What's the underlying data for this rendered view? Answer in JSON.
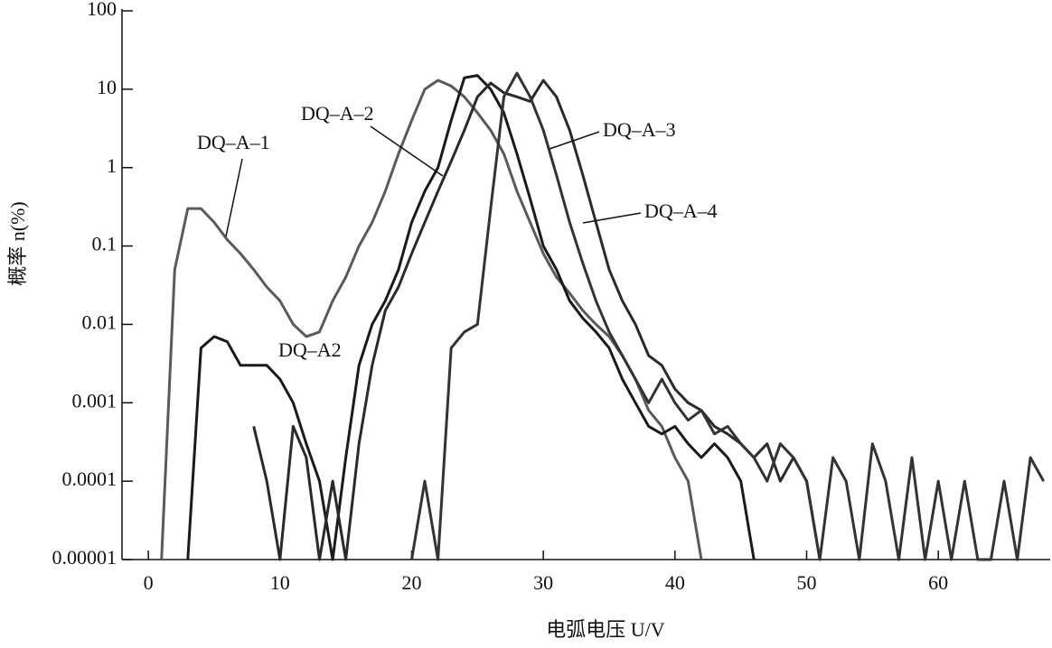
{
  "chart_data": {
    "type": "line",
    "x_label": "电弧电压 U/V",
    "y_label": "概率 n(%)",
    "log_y": true,
    "grid": false,
    "xlim": [
      -2,
      68.5
    ],
    "ylim": [
      1e-05,
      100
    ],
    "xticks": [
      0,
      10,
      20,
      30,
      40,
      50,
      60
    ],
    "yticks": [
      100,
      10,
      1,
      0.1,
      0.01,
      0.001,
      0.0001,
      {
        "value": 1e-05,
        "label": "0.00001"
      }
    ],
    "x": [
      0,
      1,
      2,
      3,
      4,
      5,
      6,
      7,
      8,
      9,
      10,
      11,
      12,
      13,
      14,
      15,
      16,
      17,
      18,
      19,
      20,
      21,
      22,
      23,
      24,
      25,
      26,
      27,
      28,
      29,
      30,
      31,
      32,
      33,
      34,
      35,
      36,
      37,
      38,
      39,
      40,
      41,
      42,
      43,
      44,
      45,
      46,
      47,
      48,
      49,
      50,
      51,
      52,
      53,
      54,
      55,
      56,
      57,
      58,
      59,
      60,
      61,
      62,
      63,
      64,
      65,
      66,
      67,
      68
    ],
    "series": [
      {
        "name": "DQ–A–1",
        "color": "#5a5a5a",
        "values": [
          null,
          1e-05,
          0.05,
          0.3,
          0.3,
          0.2,
          0.12,
          0.08,
          0.05,
          0.03,
          0.02,
          0.01,
          0.007,
          0.008,
          0.02,
          0.04,
          0.1,
          0.2,
          0.5,
          1.5,
          4,
          10,
          13,
          11,
          8,
          5,
          3,
          1.5,
          0.5,
          0.2,
          0.08,
          0.04,
          0.025,
          0.015,
          0.01,
          0.007,
          0.004,
          0.002,
          0.0008,
          0.0005,
          0.0002,
          0.0001,
          1e-05,
          null,
          null,
          null,
          null,
          null,
          null,
          null,
          null,
          null,
          null,
          null,
          null,
          null,
          null,
          null,
          null,
          null,
          null,
          null,
          null,
          null,
          null,
          null,
          null,
          null,
          null
        ]
      },
      {
        "name": "DQ–A–2",
        "color": "#1a1a1a",
        "values": [
          null,
          null,
          null,
          1e-05,
          0.005,
          0.007,
          0.006,
          0.003,
          0.003,
          0.003,
          0.002,
          0.001,
          0.0003,
          0.0001,
          1e-05,
          0.0002,
          0.003,
          0.01,
          0.02,
          0.05,
          0.2,
          0.5,
          1,
          4,
          14,
          15,
          10,
          5,
          1.5,
          0.4,
          0.1,
          0.05,
          0.02,
          0.012,
          0.008,
          0.005,
          0.002,
          0.001,
          0.0005,
          0.0004,
          0.0005,
          0.0003,
          0.0002,
          0.0003,
          0.0002,
          0.0001,
          1e-05,
          null,
          null,
          null,
          null,
          null,
          null,
          null,
          null,
          null,
          null,
          null,
          null,
          null,
          null,
          null,
          null,
          null,
          null,
          null,
          null,
          null,
          null
        ]
      },
      {
        "name": "DQ–A–3",
        "color": "#2a2a2a",
        "values": [
          null,
          null,
          null,
          null,
          null,
          null,
          null,
          null,
          0.0005,
          0.0001,
          1e-05,
          0.0005,
          0.0002,
          1e-05,
          0.0001,
          1e-05,
          0.0003,
          0.003,
          0.015,
          0.03,
          0.08,
          0.2,
          0.5,
          1.2,
          3,
          8,
          12,
          9,
          8,
          7,
          13,
          8,
          3,
          0.8,
          0.2,
          0.05,
          0.02,
          0.01,
          0.004,
          0.003,
          0.0015,
          0.001,
          0.0008,
          0.0005,
          0.0004,
          0.0003,
          0.0002,
          0.0003,
          0.0001,
          0.0002,
          0.0001,
          1e-05,
          null,
          null,
          null,
          null,
          null,
          null,
          null,
          null,
          null,
          null,
          null,
          null,
          null,
          null,
          null,
          null,
          null
        ]
      },
      {
        "name": "DQ–A–4",
        "color": "#333333",
        "values": [
          null,
          null,
          null,
          null,
          null,
          null,
          null,
          null,
          null,
          null,
          null,
          null,
          null,
          null,
          null,
          null,
          null,
          null,
          null,
          null,
          1e-05,
          0.0001,
          1e-05,
          0.005,
          0.008,
          0.01,
          0.3,
          8,
          16,
          8,
          3,
          0.8,
          0.2,
          0.06,
          0.02,
          0.008,
          0.004,
          0.002,
          0.001,
          0.002,
          0.001,
          0.0006,
          0.0008,
          0.0004,
          0.0005,
          0.0003,
          0.0002,
          0.0001,
          0.0003,
          0.0002,
          0.0001,
          1e-05,
          0.0002,
          0.0001,
          1e-05,
          0.0003,
          0.0001,
          1e-05,
          0.0002,
          1e-05,
          0.0001,
          1e-05,
          0.0001,
          1e-05,
          1e-05,
          0.0001,
          1e-05,
          0.0002,
          0.0001
        ]
      }
    ],
    "annotations": [
      "DQ–A2"
    ]
  }
}
